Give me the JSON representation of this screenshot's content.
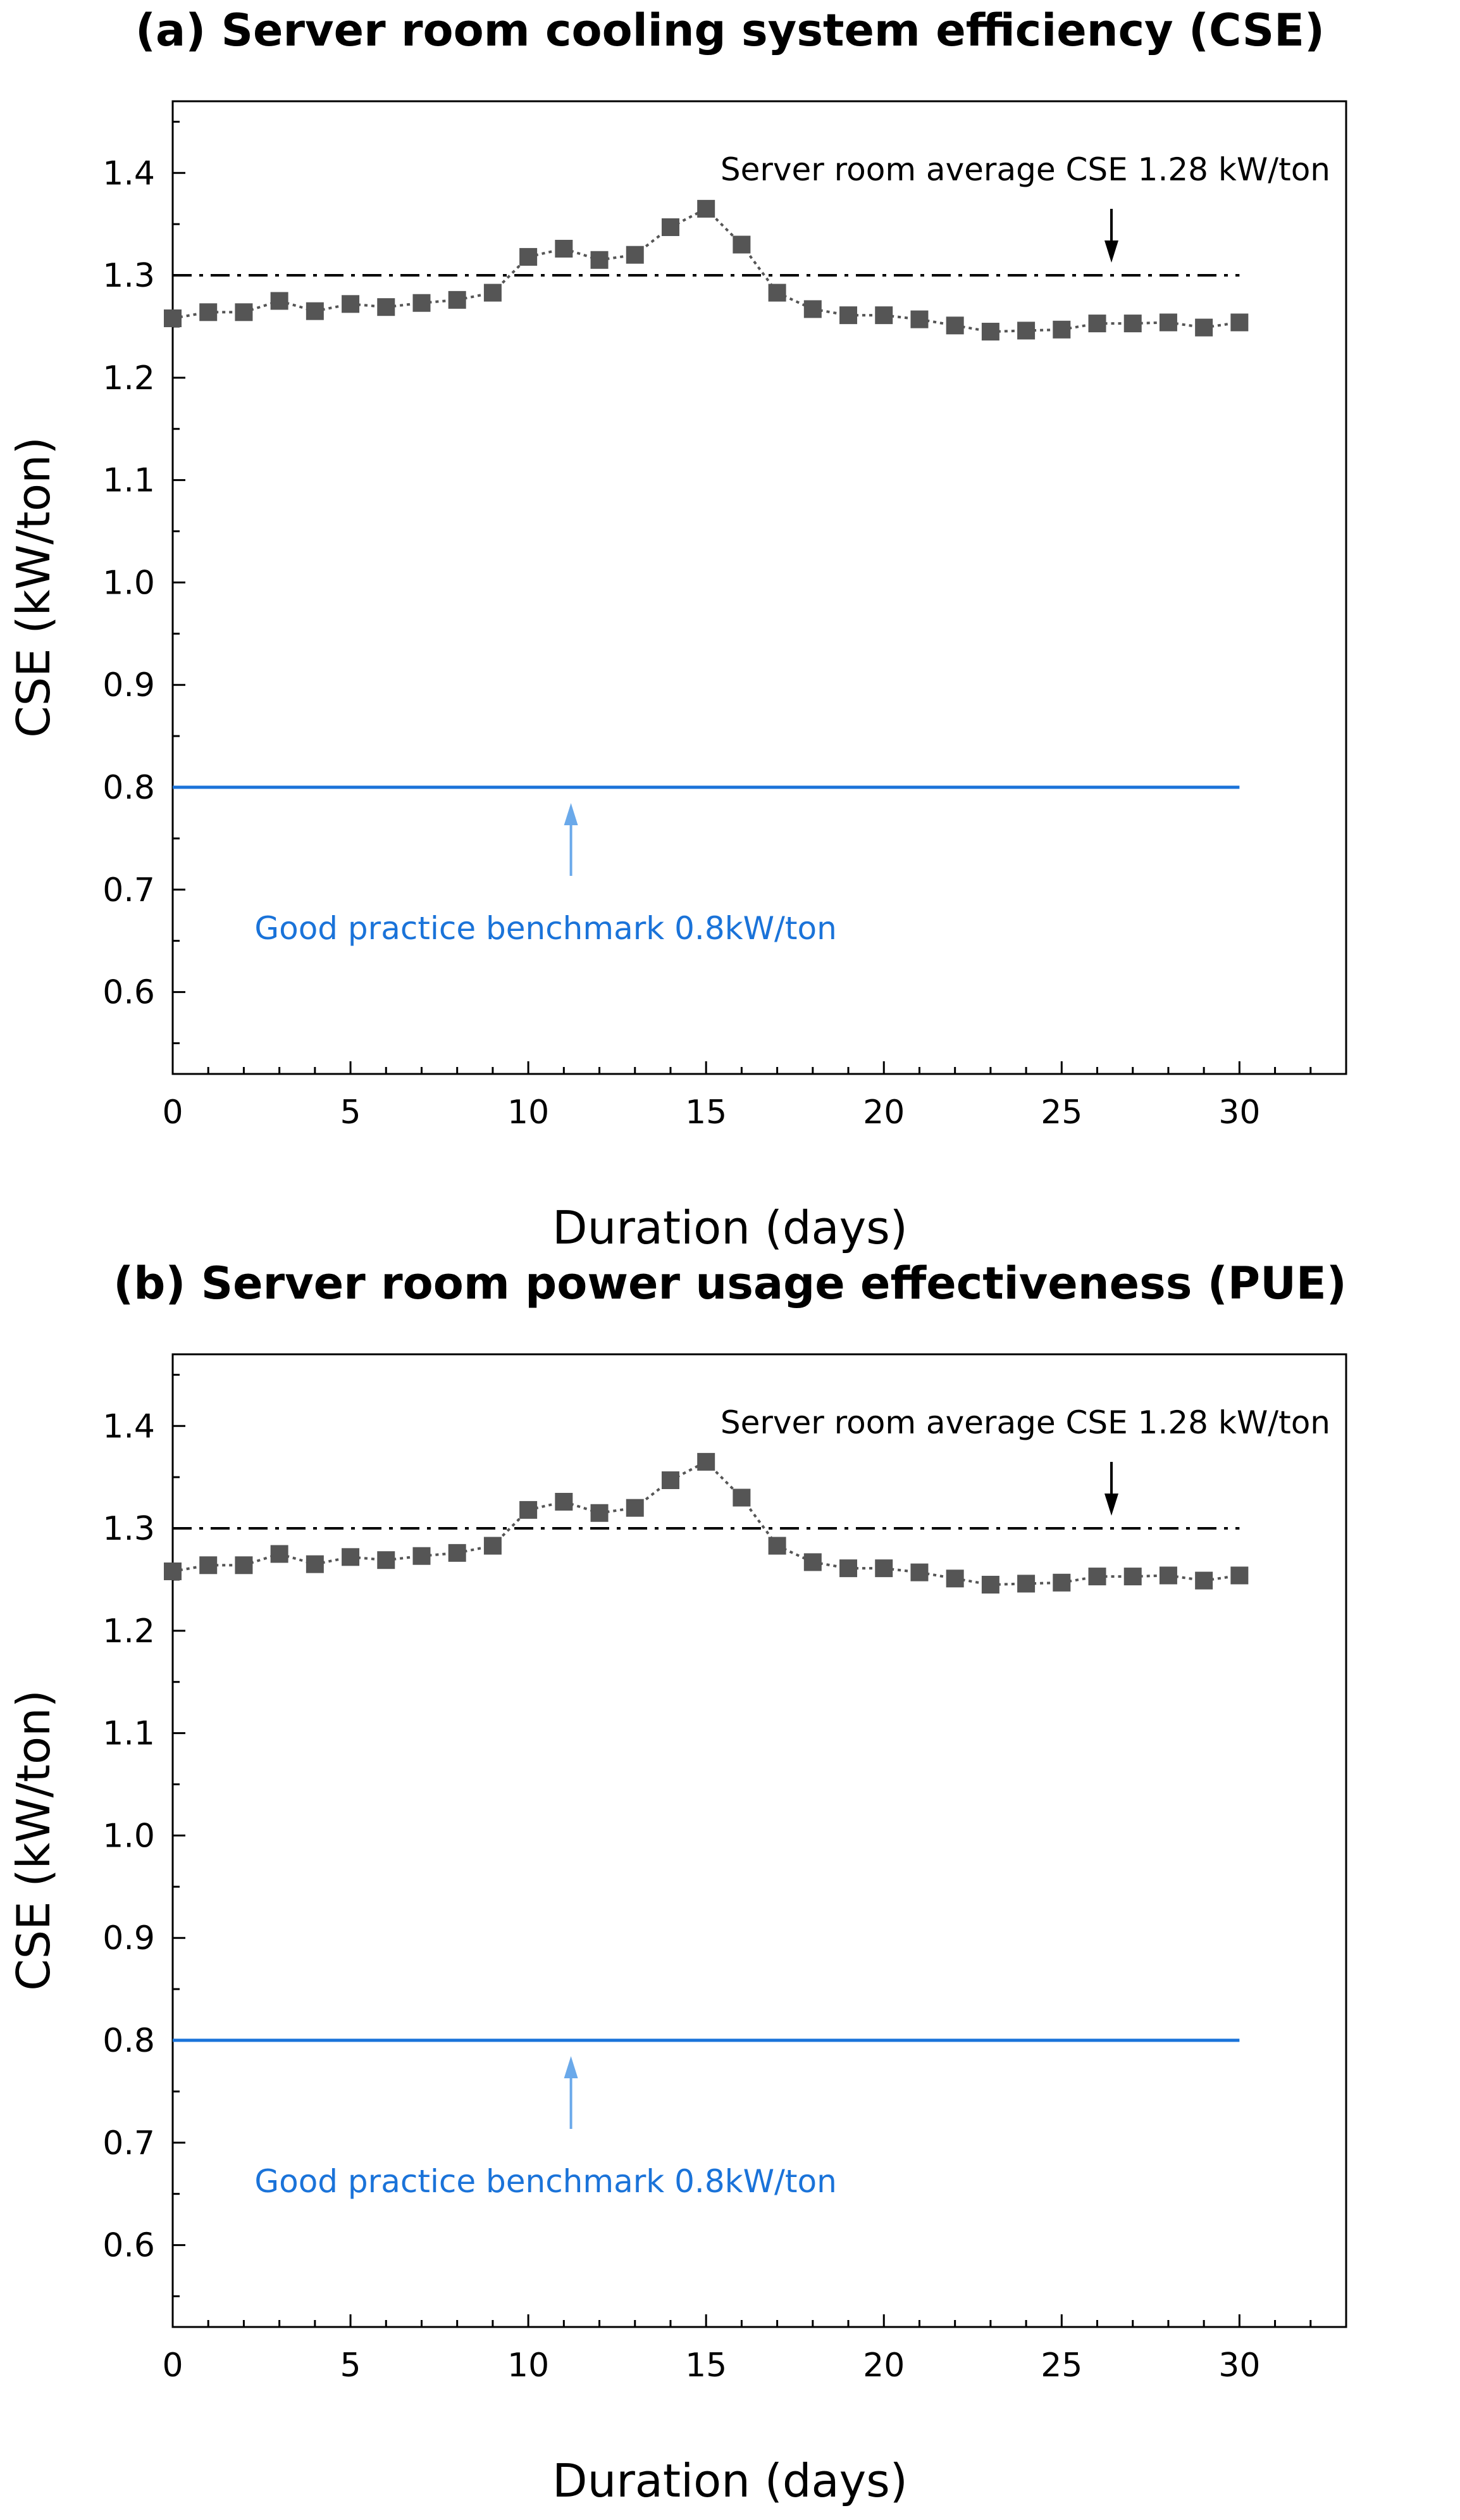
{
  "colors": {
    "marker": "#555555",
    "connector": "#555555",
    "reference_line": "#000000",
    "benchmark_line": "#1a73d9",
    "benchmark_arrow": "#6aa9ea",
    "axis": "#000000"
  },
  "chart_data": [
    {
      "type": "line",
      "title": "(a) Server room cooling system efficiency (CSE)",
      "xlabel": "Duration (days)",
      "ylabel": "CSE (kW/ton)",
      "xlim": [
        0,
        33
      ],
      "ylim": [
        0.52,
        1.47
      ],
      "x_ticks": [
        0,
        5,
        10,
        15,
        20,
        25,
        30
      ],
      "y_ticks": [
        0.6,
        0.7,
        0.8,
        0.9,
        1.0,
        1.1,
        1.2,
        1.3,
        1.4
      ],
      "y_tick_labels": [
        "0.6",
        "0.7",
        "0.8",
        "0.9",
        "1.0",
        "1.1",
        "1.2",
        "1.3",
        "1.4"
      ],
      "series": [
        {
          "name": "CSE",
          "x": [
            0,
            1,
            2,
            3,
            4,
            5,
            6,
            7,
            8,
            9,
            10,
            11,
            12,
            13,
            14,
            15,
            16,
            17,
            18,
            19,
            20,
            21,
            22,
            23,
            24,
            25,
            26,
            27,
            28,
            29,
            30
          ],
          "values": [
            1.258,
            1.264,
            1.264,
            1.275,
            1.265,
            1.272,
            1.269,
            1.273,
            1.276,
            1.283,
            1.318,
            1.326,
            1.315,
            1.32,
            1.347,
            1.365,
            1.33,
            1.283,
            1.267,
            1.261,
            1.261,
            1.257,
            1.251,
            1.245,
            1.246,
            1.247,
            1.253,
            1.253,
            1.254,
            1.249,
            1.254
          ]
        }
      ],
      "reference_line": {
        "y": 1.3,
        "x_range": [
          0,
          30
        ]
      },
      "benchmark_line": {
        "y": 0.8,
        "x_range": [
          0,
          30
        ]
      },
      "annotations": {
        "average": {
          "text": "Server room average CSE 1.28 kW/ton",
          "arrow_x": 26.4
        },
        "benchmark": {
          "text": "Good practice benchmark 0.8kW/ton",
          "arrow_x": 11.2
        }
      }
    },
    {
      "type": "line",
      "title": "(b) Server room power usage effectiveness (PUE)",
      "xlabel": "Duration (days)",
      "ylabel": "CSE (kW/ton)",
      "xlim": [
        0,
        33
      ],
      "ylim": [
        0.52,
        1.47
      ],
      "x_ticks": [
        0,
        5,
        10,
        15,
        20,
        25,
        30
      ],
      "y_ticks": [
        0.6,
        0.7,
        0.8,
        0.9,
        1.0,
        1.1,
        1.2,
        1.3,
        1.4
      ],
      "y_tick_labels": [
        "0.6",
        "0.7",
        "0.8",
        "0.9",
        "1.0",
        "1.1",
        "1.2",
        "1.3",
        "1.4"
      ],
      "series": [
        {
          "name": "CSE",
          "x": [
            0,
            1,
            2,
            3,
            4,
            5,
            6,
            7,
            8,
            9,
            10,
            11,
            12,
            13,
            14,
            15,
            16,
            17,
            18,
            19,
            20,
            21,
            22,
            23,
            24,
            25,
            26,
            27,
            28,
            29,
            30
          ],
          "values": [
            1.258,
            1.264,
            1.264,
            1.275,
            1.265,
            1.272,
            1.269,
            1.273,
            1.276,
            1.283,
            1.318,
            1.326,
            1.315,
            1.32,
            1.347,
            1.365,
            1.33,
            1.283,
            1.267,
            1.261,
            1.261,
            1.257,
            1.251,
            1.245,
            1.246,
            1.247,
            1.253,
            1.253,
            1.254,
            1.249,
            1.254
          ]
        }
      ],
      "reference_line": {
        "y": 1.3,
        "x_range": [
          0,
          30
        ]
      },
      "benchmark_line": {
        "y": 0.8,
        "x_range": [
          0,
          30
        ]
      },
      "annotations": {
        "average": {
          "text": "Server room average CSE 1.28 kW/ton",
          "arrow_x": 26.4
        },
        "benchmark": {
          "text": "Good practice benchmark 0.8kW/ton",
          "arrow_x": 11.2
        }
      }
    }
  ]
}
